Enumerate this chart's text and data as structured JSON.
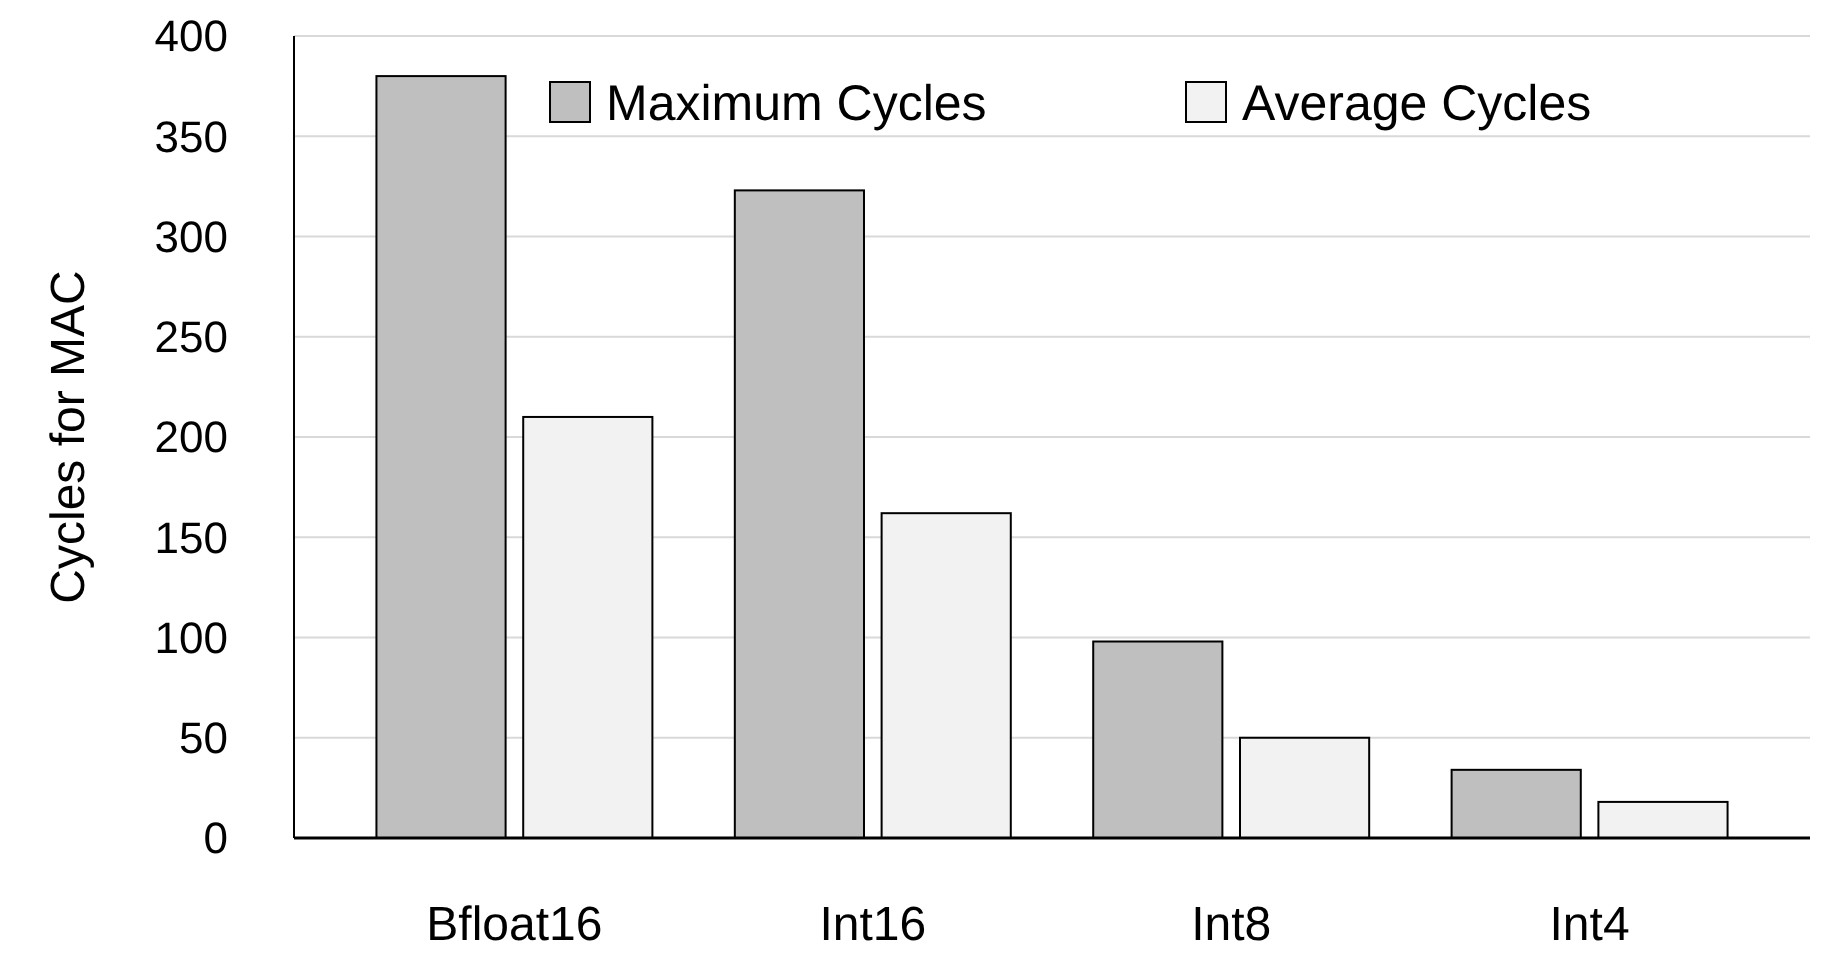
{
  "chart_data": {
    "type": "bar",
    "ylabel": "Cycles for MAC",
    "categories": [
      "Bfloat16",
      "Int16",
      "Int8",
      "Int4"
    ],
    "series": [
      {
        "name": "Maximum Cycles",
        "color": "#bfbfbf",
        "values": [
          380,
          323,
          98,
          34
        ]
      },
      {
        "name": "Average Cycles",
        "color": "#f2f2f2",
        "values": [
          210,
          162,
          50,
          18
        ]
      }
    ],
    "ylim": [
      0,
      400
    ],
    "yticks": [
      0,
      50,
      100,
      150,
      200,
      250,
      300,
      350,
      400
    ],
    "grid": "y",
    "legend": "top right"
  }
}
